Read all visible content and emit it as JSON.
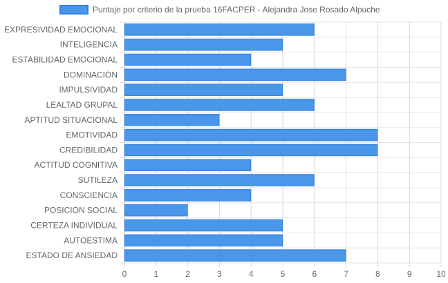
{
  "chart_data": {
    "type": "bar",
    "orientation": "horizontal",
    "legend_position": "top",
    "grid": true,
    "xlim": [
      0,
      10
    ],
    "x_ticks": [
      "0",
      "1",
      "2",
      "3",
      "4",
      "5",
      "6",
      "7",
      "8",
      "9",
      "10"
    ],
    "categories": [
      "EXPRESIVIDAD EMOCIONAL",
      "INTELIGENCIA",
      "ESTABILIDAD EMOCIONAL",
      "DOMINACIÓN",
      "IMPULSIVIDAD",
      "LEALTAD GRUPAL",
      "APTITUD SITUACIONAL",
      "EMOTIVIDAD",
      "CREDIBILIDAD",
      "ACTITUD COGNITIVA",
      "SUTILEZA",
      "CONSCIENCIA",
      "POSICIÓN SOCIAL",
      "CERTEZA INDIVIDUAL",
      "AUTOESTIMA",
      "ESTADO DE ANSIEDAD"
    ],
    "series": [
      {
        "name": "Puntaje por criterio de la prueba 16FACPER - Alejandra Jose Rosado Alpuche",
        "color": "#4a97ea",
        "border_color": "#2f80e0",
        "values": [
          6,
          5,
          4,
          7,
          5,
          6,
          3,
          8,
          8,
          4,
          6,
          4,
          2,
          5,
          5,
          7
        ]
      }
    ],
    "colors": {
      "grid": "#e6e6e6",
      "axis": "#c4c4c4",
      "text": "#666666"
    }
  }
}
